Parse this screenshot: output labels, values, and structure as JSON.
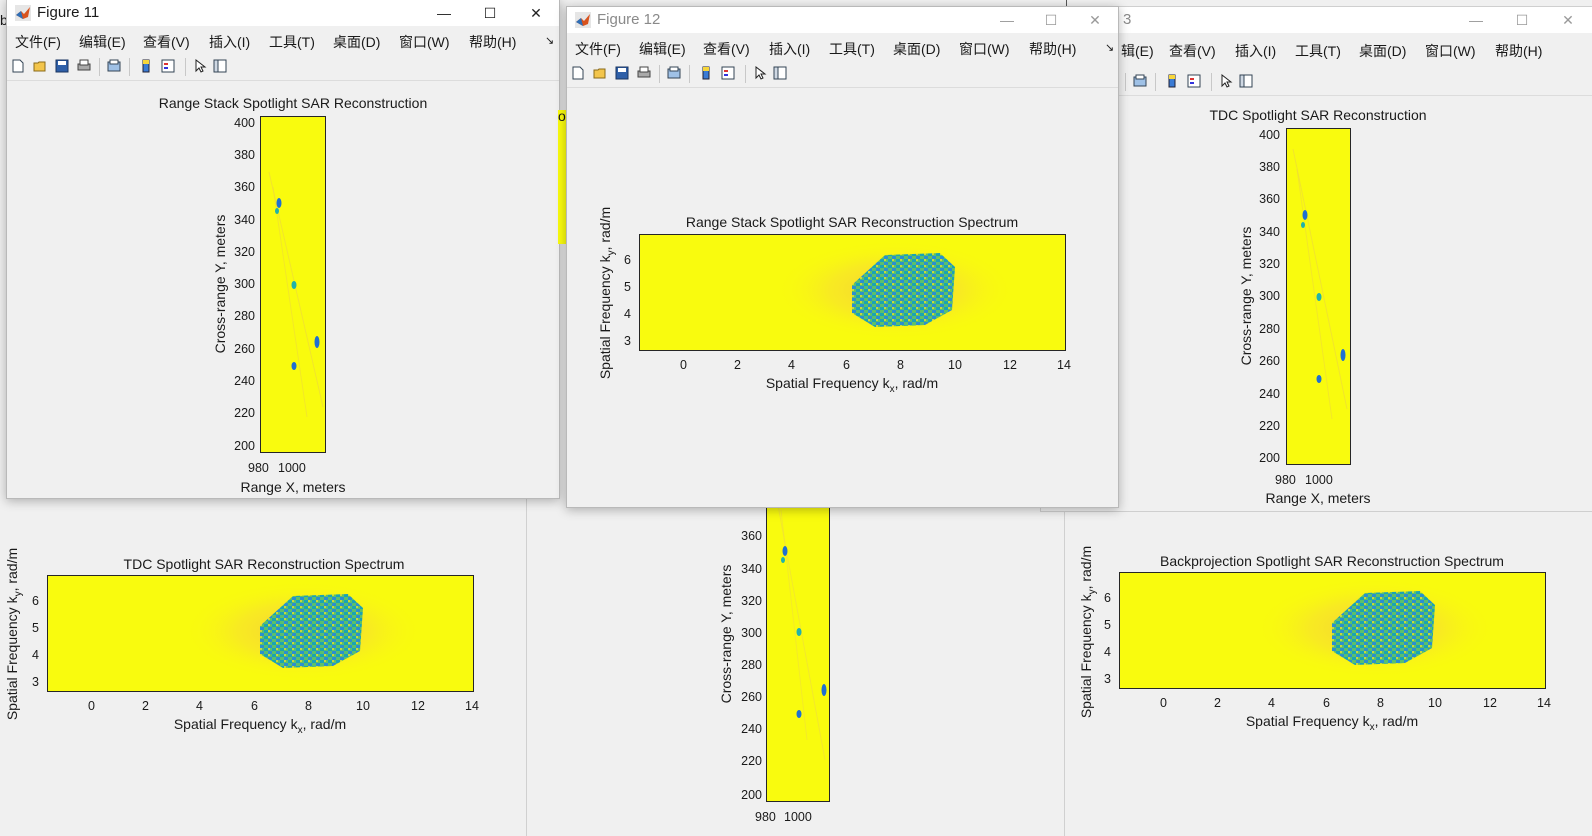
{
  "colors": {
    "field_yellow": "#f9fb0e",
    "window_bg": "#f0f0f0",
    "mark_blue": "#1f6fd1",
    "mark_teal": "#20b2aa",
    "mark_orange": "#f5b53b"
  },
  "menu": [
    "文件(F)",
    "编辑(E)",
    "查看(V)",
    "插入(I)",
    "工具(T)",
    "桌面(D)",
    "窗口(W)",
    "帮助(H)"
  ],
  "menu_partial": "辑(E)",
  "menu_more_icon": "arrow-icon",
  "toolbar_icons": [
    "new-figure-icon",
    "open-file-icon",
    "save-icon",
    "print-icon",
    "link-plot-icon",
    "colorbar-icon",
    "legend-icon",
    "pointer-icon",
    "property-inspector-icon"
  ],
  "win_controls": {
    "minimize": "—",
    "maximize": "☐",
    "close": "✕"
  },
  "fig11": {
    "title": "Figure 11",
    "plot_title": "Range Stack Spotlight SAR Reconstruction",
    "xlabel": "Range X, meters",
    "ylabel": "Cross-range Y, meters",
    "xticks": [
      "980",
      "1000"
    ],
    "yticks": [
      "400",
      "380",
      "360",
      "340",
      "320",
      "300",
      "280",
      "260",
      "240",
      "220",
      "200"
    ]
  },
  "fig12": {
    "title": "Figure 12",
    "plot_title": "Range Stack Spotlight SAR Reconstruction Spectrum",
    "xlabel_pre": "Spatial Frequency k",
    "xlabel_sub": "x",
    "xlabel_post": ", rad/m",
    "ylabel_pre": "Spatial Frequency k",
    "ylabel_sub": "y",
    "ylabel_post": ", rad/m",
    "xticks": [
      "0",
      "2",
      "4",
      "6",
      "8",
      "10",
      "12",
      "14"
    ],
    "yticks": [
      "6",
      "5",
      "4",
      "3"
    ]
  },
  "fig13": {
    "title_partial": "3",
    "plot_title": "TDC Spotlight SAR Reconstruction",
    "xlabel": "Range X, meters",
    "ylabel": "Cross-range Y, meters",
    "xticks": [
      "980",
      "1000"
    ],
    "yticks": [
      "400",
      "380",
      "360",
      "340",
      "320",
      "300",
      "280",
      "260",
      "240",
      "220",
      "200"
    ]
  },
  "bg_left": {
    "plot_title": "TDC Spotlight SAR Reconstruction Spectrum",
    "xlabel_pre": "Spatial Frequency k",
    "xlabel_sub": "x",
    "xlabel_post": ", rad/m",
    "ylabel_pre": "Spatial Frequency k",
    "ylabel_sub": "y",
    "ylabel_post": ", rad/m",
    "xticks": [
      "0",
      "2",
      "4",
      "6",
      "8",
      "10",
      "12",
      "14"
    ],
    "yticks": [
      "6",
      "5",
      "4",
      "3"
    ]
  },
  "bg_middle": {
    "ylabel": "Cross-range Y, meters",
    "xticks": [
      "980",
      "1000"
    ],
    "yticks": [
      "360",
      "340",
      "320",
      "300",
      "280",
      "260",
      "240",
      "220",
      "200"
    ]
  },
  "bg_right": {
    "plot_title": "Backprojection Spotlight SAR Reconstruction Spectrum",
    "xlabel_pre": "Spatial Frequency k",
    "xlabel_sub": "x",
    "xlabel_post": ", rad/m",
    "ylabel_pre": "Spatial Frequency k",
    "ylabel_sub": "y",
    "ylabel_post": ", rad/m",
    "xticks": [
      "0",
      "2",
      "4",
      "6",
      "8",
      "10",
      "12",
      "14"
    ],
    "yticks": [
      "6",
      "5",
      "4",
      "3"
    ]
  },
  "edge_fragments": {
    "left_top": "b",
    "mid_partial": "o"
  }
}
